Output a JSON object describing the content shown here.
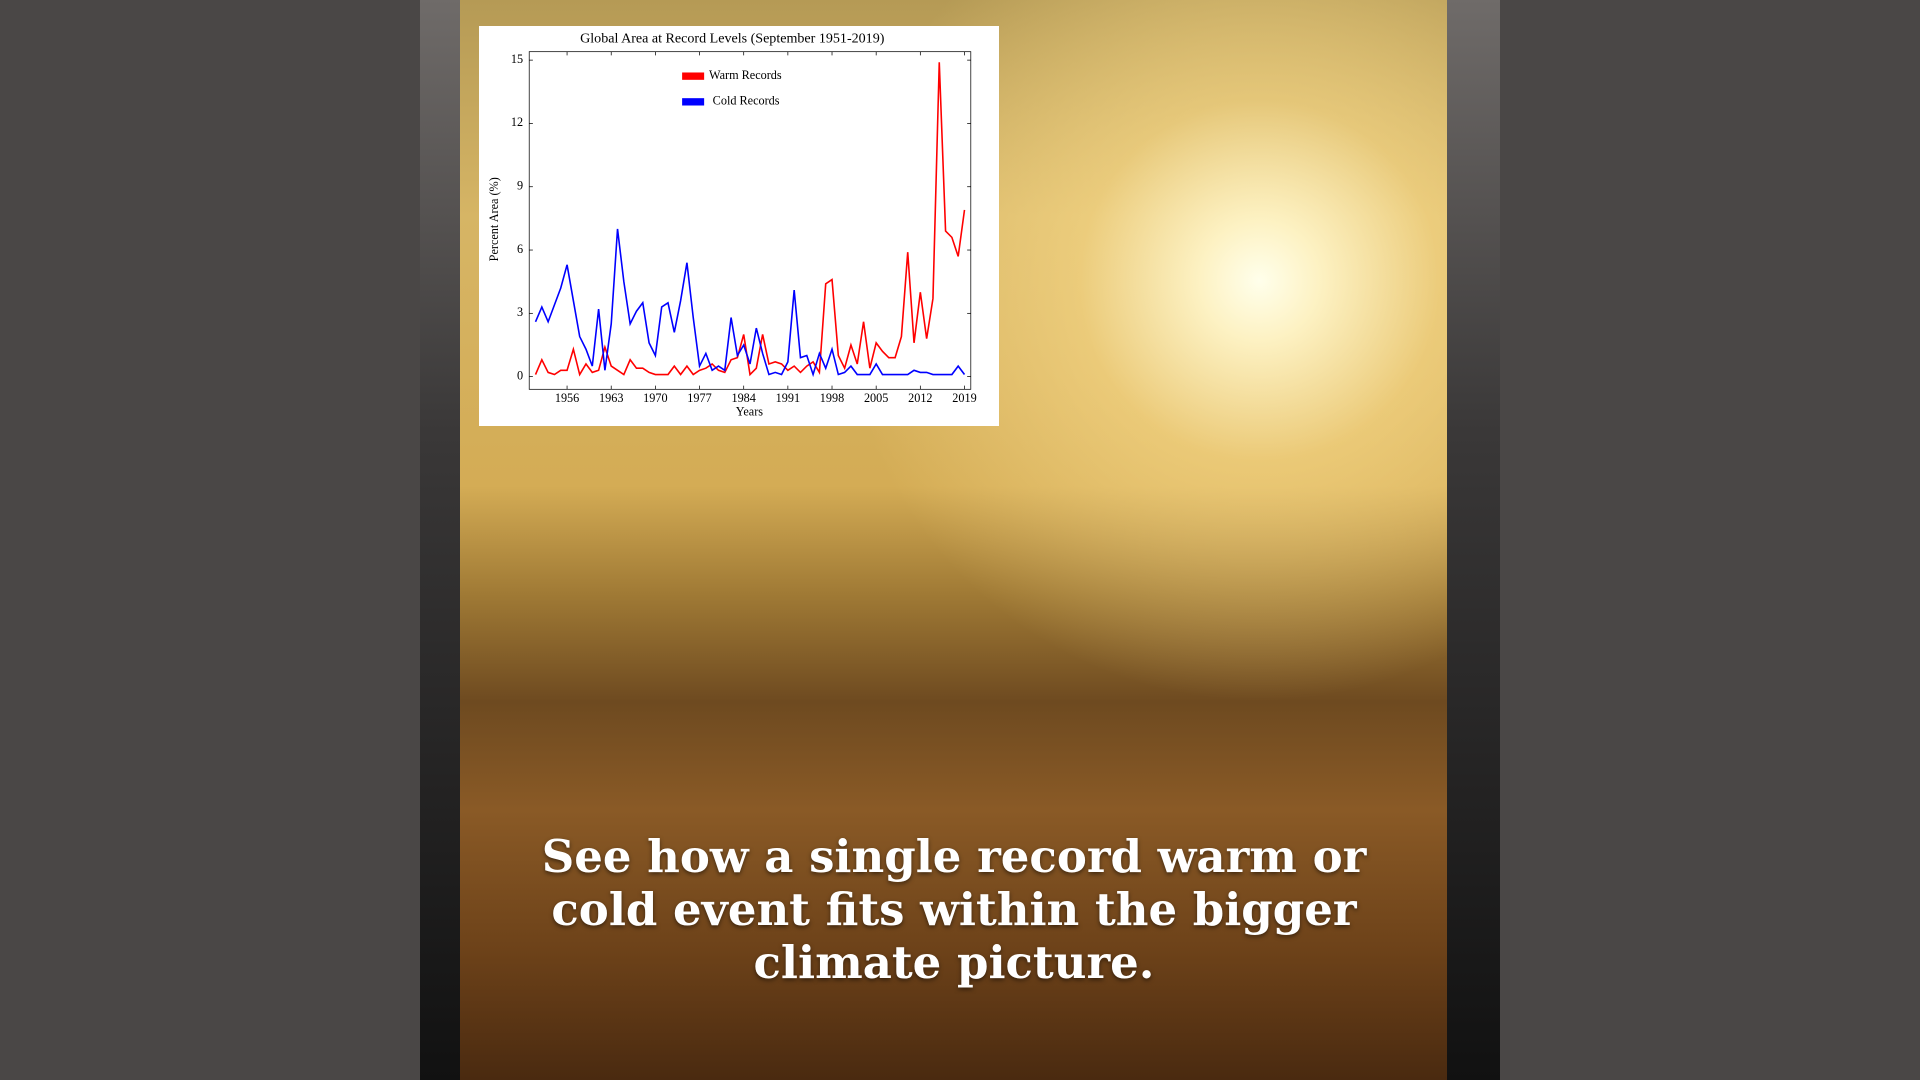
{
  "chart_data": {
    "type": "line",
    "title": "Global Area at Record Levels (September 1951-2019)",
    "x_label": "Years",
    "y_label": "Percent Area (%)",
    "x": [
      1951,
      1952,
      1953,
      1954,
      1955,
      1956,
      1957,
      1958,
      1959,
      1960,
      1961,
      1962,
      1963,
      1964,
      1965,
      1966,
      1967,
      1968,
      1969,
      1970,
      1971,
      1972,
      1973,
      1974,
      1975,
      1976,
      1977,
      1978,
      1979,
      1980,
      1981,
      1982,
      1983,
      1984,
      1985,
      1986,
      1987,
      1988,
      1989,
      1990,
      1991,
      1992,
      1993,
      1994,
      1995,
      1996,
      1997,
      1998,
      1999,
      2000,
      2001,
      2002,
      2003,
      2004,
      2005,
      2006,
      2007,
      2008,
      2009,
      2010,
      2011,
      2012,
      2013,
      2014,
      2015,
      2016,
      2017,
      2018,
      2019
    ],
    "series": [
      {
        "name": "Warm Records",
        "color": "#ff0000",
        "values": [
          0.1,
          0.8,
          0.2,
          0.1,
          0.3,
          0.3,
          1.3,
          0.1,
          0.6,
          0.2,
          0.3,
          1.4,
          0.5,
          0.3,
          0.1,
          0.8,
          0.4,
          0.4,
          0.2,
          0.1,
          0.1,
          0.1,
          0.5,
          0.1,
          0.5,
          0.1,
          0.3,
          0.4,
          0.6,
          0.3,
          0.2,
          0.8,
          0.9,
          2.0,
          0.1,
          0.4,
          2.0,
          0.6,
          0.7,
          0.6,
          0.3,
          0.5,
          0.2,
          0.5,
          0.7,
          0.2,
          4.4,
          4.6,
          1.0,
          0.4,
          1.5,
          0.6,
          2.6,
          0.4,
          1.6,
          1.2,
          0.9,
          0.9,
          1.9,
          5.9,
          1.6,
          4.0,
          1.8,
          3.7,
          14.9,
          6.9,
          6.6,
          5.7,
          7.9
        ]
      },
      {
        "name": "Cold Records",
        "color": "#0000ff",
        "values": [
          2.6,
          3.3,
          2.6,
          3.4,
          4.2,
          5.3,
          3.6,
          1.9,
          1.3,
          0.5,
          3.2,
          0.3,
          2.5,
          7.0,
          4.5,
          2.5,
          3.1,
          3.5,
          1.6,
          1.0,
          3.3,
          3.5,
          2.1,
          3.6,
          5.4,
          2.8,
          0.5,
          1.1,
          0.3,
          0.5,
          0.3,
          2.8,
          1.0,
          1.5,
          0.6,
          2.3,
          1.1,
          0.1,
          0.2,
          0.1,
          0.7,
          4.1,
          0.9,
          1.0,
          0.1,
          1.1,
          0.4,
          1.3,
          0.1,
          0.2,
          0.5,
          0.1,
          0.1,
          0.1,
          0.6,
          0.1,
          0.1,
          0.1,
          0.1,
          0.1,
          0.3,
          0.2,
          0.2,
          0.1,
          0.1,
          0.1,
          0.1,
          0.5,
          0.1
        ]
      }
    ],
    "xlim": [
      1950,
      2020
    ],
    "xticks": [
      1956,
      1963,
      1970,
      1977,
      1984,
      1991,
      1998,
      2005,
      2012,
      2019
    ],
    "ylim": [
      -0.6,
      15.4
    ],
    "yticks": [
      0,
      3,
      6,
      9,
      12,
      15
    ]
  },
  "caption": "See how a single record warm or cold event fits within the bigger climate picture."
}
